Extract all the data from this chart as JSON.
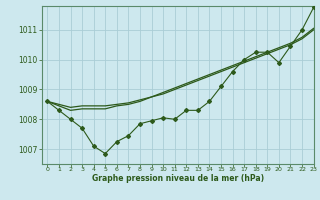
{
  "bg_color": "#cde8ee",
  "grid_color": "#aacdd6",
  "line_color": "#2d5a1b",
  "spine_color": "#5a8a6a",
  "xlabel": "Graphe pression niveau de la mer (hPa)",
  "xlim": [
    -0.5,
    23
  ],
  "ylim": [
    1006.5,
    1011.8
  ],
  "yticks": [
    1007,
    1008,
    1009,
    1010,
    1011
  ],
  "xticks": [
    0,
    1,
    2,
    3,
    4,
    5,
    6,
    7,
    8,
    9,
    10,
    11,
    12,
    13,
    14,
    15,
    16,
    17,
    18,
    19,
    20,
    21,
    22,
    23
  ],
  "series1": [
    1008.6,
    1008.3,
    1008.0,
    1007.7,
    1007.1,
    1006.85,
    1007.25,
    1007.45,
    1007.85,
    1007.95,
    1008.05,
    1008.0,
    1008.3,
    1008.3,
    1008.6,
    1009.1,
    1009.6,
    1010.0,
    1010.25,
    1010.25,
    1009.9,
    1010.45,
    1011.0,
    1011.75
  ],
  "series2": [
    1008.6,
    1008.45,
    1008.3,
    1008.35,
    1008.35,
    1008.35,
    1008.45,
    1008.5,
    1008.6,
    1008.75,
    1008.9,
    1009.05,
    1009.2,
    1009.35,
    1009.5,
    1009.65,
    1009.8,
    1009.95,
    1010.1,
    1010.25,
    1010.4,
    1010.55,
    1010.75,
    1011.05
  ],
  "series3": [
    1008.6,
    1008.5,
    1008.4,
    1008.45,
    1008.45,
    1008.45,
    1008.5,
    1008.55,
    1008.65,
    1008.75,
    1008.85,
    1009.0,
    1009.15,
    1009.3,
    1009.45,
    1009.6,
    1009.75,
    1009.9,
    1010.05,
    1010.2,
    1010.35,
    1010.5,
    1010.7,
    1011.0
  ]
}
